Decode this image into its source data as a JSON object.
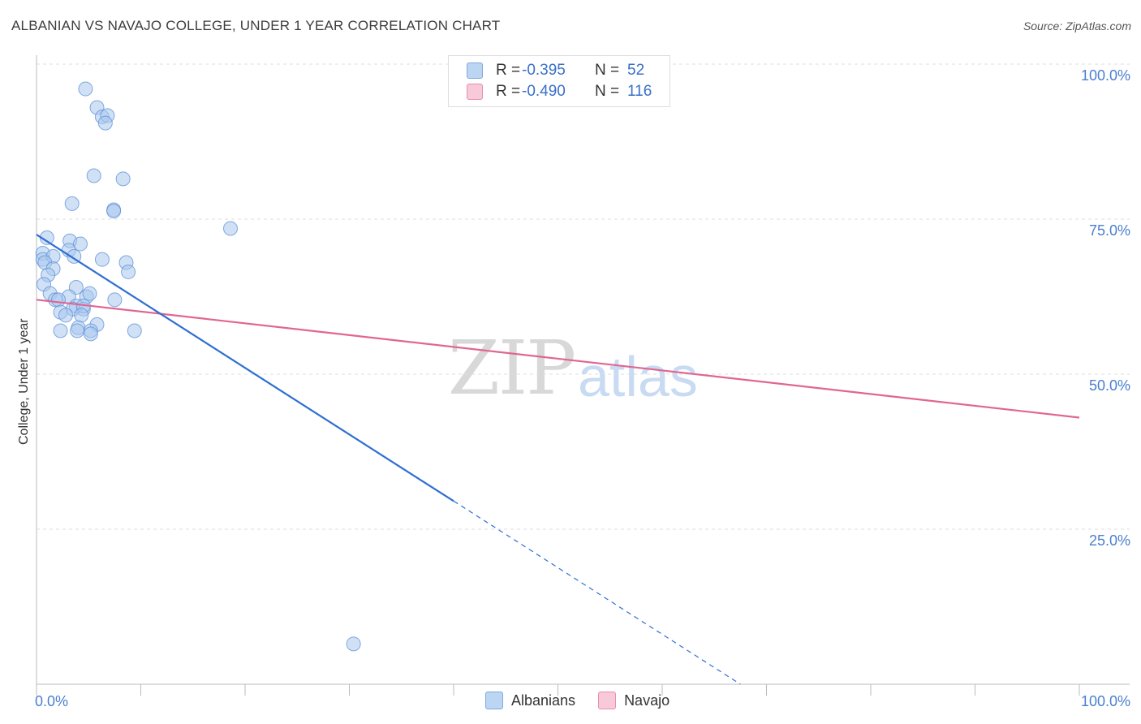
{
  "title": "ALBANIAN VS NAVAJO COLLEGE, UNDER 1 YEAR CORRELATION CHART",
  "source": "Source: ZipAtlas.com",
  "watermark": {
    "zip": "ZIP",
    "atlas": "atlas"
  },
  "legend_top": [
    {
      "label": "R =",
      "r": "-0.395",
      "n_label": "N =",
      "n": "52",
      "color": "#a9c9f0"
    },
    {
      "label": "R =",
      "r": "-0.490",
      "n_label": "N =",
      "n": "116",
      "color": "#f6b9cd"
    }
  ],
  "legend_bottom": [
    {
      "name": "Albanians",
      "color": "#bcd5f3"
    },
    {
      "name": "Navajo",
      "color": "#f8c9d8"
    }
  ],
  "colors": {
    "blue_fill": "#a9c8ee",
    "blue_stroke": "#5b8fd6",
    "blue_line": "#2e6fd2",
    "pink_fill": "#f6b9cd",
    "pink_stroke": "#e5869f",
    "pink_line": "#e06692",
    "grid": "#dedede"
  },
  "chart_data": {
    "type": "scatter",
    "title": "ALBANIAN VS NAVAJO COLLEGE, UNDER 1 YEAR CORRELATION CHART",
    "xlabel": "",
    "ylabel": "College, Under 1 year",
    "xlim": [
      0,
      100
    ],
    "ylim": [
      0,
      100
    ],
    "x_tick_labels": [
      "0.0%",
      "100.0%"
    ],
    "y_ticks": [
      25,
      50,
      75,
      100
    ],
    "y_tick_labels": [
      "25.0%",
      "50.0%",
      "75.0%",
      "100.0%"
    ],
    "series": [
      {
        "name": "Albanians",
        "trend": {
          "x0": 0,
          "y0": 72.5,
          "x_solid_end": 40,
          "x_dash_end": 67.5
        },
        "points": [
          [
            4.7,
            96
          ],
          [
            5.8,
            93
          ],
          [
            6.3,
            91.5
          ],
          [
            6.8,
            91.7
          ],
          [
            6.6,
            90.5
          ],
          [
            5.5,
            82
          ],
          [
            8.3,
            81.5
          ],
          [
            3.4,
            77.5
          ],
          [
            7.4,
            76.5
          ],
          [
            7.4,
            76.3
          ],
          [
            18.6,
            73.5
          ],
          [
            1.0,
            72
          ],
          [
            3.2,
            71.5
          ],
          [
            4.2,
            71
          ],
          [
            3.1,
            70
          ],
          [
            0.6,
            69.5
          ],
          [
            0.6,
            68.5
          ],
          [
            1.6,
            69
          ],
          [
            3.6,
            69
          ],
          [
            6.3,
            68.5
          ],
          [
            8.6,
            68
          ],
          [
            0.8,
            68
          ],
          [
            1.6,
            67
          ],
          [
            1.1,
            66
          ],
          [
            8.8,
            66.5
          ],
          [
            0.7,
            64.5
          ],
          [
            3.8,
            64
          ],
          [
            1.3,
            63
          ],
          [
            4.8,
            62.5
          ],
          [
            3.1,
            62.5
          ],
          [
            1.8,
            62
          ],
          [
            5.1,
            63
          ],
          [
            2.1,
            62
          ],
          [
            7.5,
            62
          ],
          [
            3.8,
            61
          ],
          [
            4.5,
            60.5
          ],
          [
            3.5,
            60.5
          ],
          [
            4.5,
            61
          ],
          [
            2.3,
            60
          ],
          [
            2.8,
            59.5
          ],
          [
            4.3,
            59.5
          ],
          [
            5.8,
            58
          ],
          [
            4.0,
            57.5
          ],
          [
            5.2,
            57
          ],
          [
            3.9,
            57
          ],
          [
            2.3,
            57
          ],
          [
            5.2,
            56.5
          ],
          [
            9.4,
            57
          ],
          [
            30.4,
            6.5
          ]
        ]
      },
      {
        "name": "Navajo",
        "trend": {
          "x0": 0,
          "y0": 62,
          "x1": 100,
          "y1": 43
        }
      }
    ]
  }
}
